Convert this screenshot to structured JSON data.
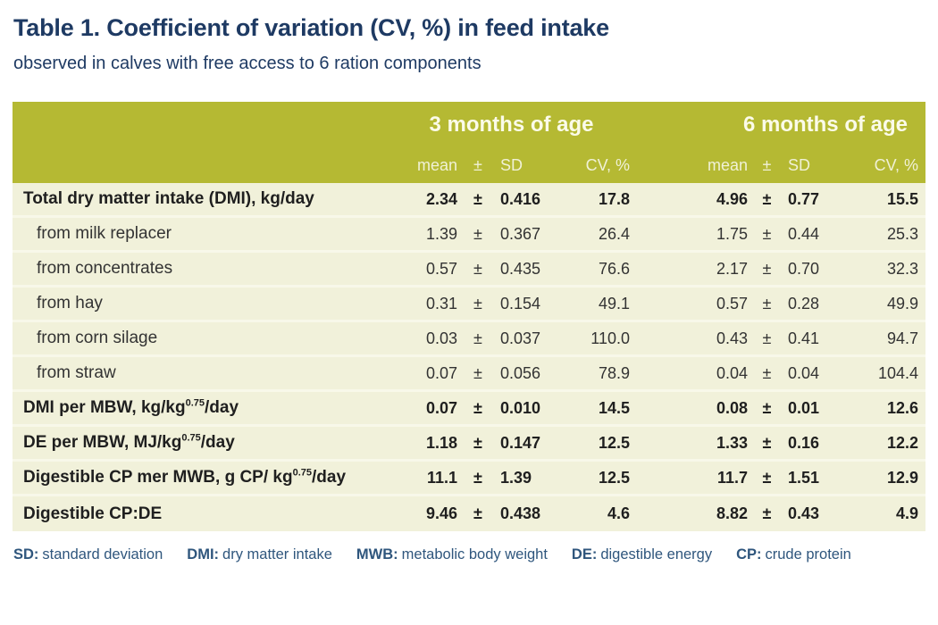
{
  "title": "Table 1. Coefficient of variation (CV, %) in feed intake",
  "subtitle": "observed in calves with free access to 6 ration components",
  "colors": {
    "title_blue": "#1e3a63",
    "header_olive": "#b5b933",
    "row_cream": "#f1f1da",
    "row_divider": "#f8f8e9",
    "footer_blue": "#2f567d"
  },
  "chart_data": {
    "type": "table",
    "title": "Table 1. Coefficient of variation (CV, %) in feed intake",
    "subtitle": "observed in calves with free access to 6 ration components",
    "group_headers": [
      "3 months of age",
      "6 months of age"
    ],
    "sub_headers": {
      "mean": "mean",
      "pm": "±",
      "sd": "SD",
      "cv": "CV, %"
    },
    "rows": [
      {
        "label": "Total dry matter intake (DMI), kg/day",
        "label_sup": "",
        "label_post": "",
        "indent": false,
        "bold": true,
        "m3": {
          "mean": "2.34",
          "sd": "0.416",
          "cv": "17.8"
        },
        "m6": {
          "mean": "4.96",
          "sd": "0.77",
          "cv": "15.5"
        }
      },
      {
        "label": "from milk replacer",
        "label_sup": "",
        "label_post": "",
        "indent": true,
        "bold": false,
        "m3": {
          "mean": "1.39",
          "sd": "0.367",
          "cv": "26.4"
        },
        "m6": {
          "mean": "1.75",
          "sd": "0.44",
          "cv": "25.3"
        }
      },
      {
        "label": "from concentrates",
        "label_sup": "",
        "label_post": "",
        "indent": true,
        "bold": false,
        "m3": {
          "mean": "0.57",
          "sd": "0.435",
          "cv": "76.6"
        },
        "m6": {
          "mean": "2.17",
          "sd": "0.70",
          "cv": "32.3"
        }
      },
      {
        "label": "from hay",
        "label_sup": "",
        "label_post": "",
        "indent": true,
        "bold": false,
        "m3": {
          "mean": "0.31",
          "sd": "0.154",
          "cv": "49.1"
        },
        "m6": {
          "mean": "0.57",
          "sd": "0.28",
          "cv": "49.9"
        }
      },
      {
        "label": "from corn silage",
        "label_sup": "",
        "label_post": "",
        "indent": true,
        "bold": false,
        "m3": {
          "mean": "0.03",
          "sd": "0.037",
          "cv": "110.0"
        },
        "m6": {
          "mean": "0.43",
          "sd": "0.41",
          "cv": "94.7"
        }
      },
      {
        "label": "from straw",
        "label_sup": "",
        "label_post": "",
        "indent": true,
        "bold": false,
        "m3": {
          "mean": "0.07",
          "sd": "0.056",
          "cv": "78.9"
        },
        "m6": {
          "mean": "0.04",
          "sd": "0.04",
          "cv": "104.4"
        }
      },
      {
        "label": "DMI per MBW, kg/kg",
        "label_sup": "0.75",
        "label_post": "/day",
        "indent": false,
        "bold": true,
        "m3": {
          "mean": "0.07",
          "sd": "0.010",
          "cv": "14.5"
        },
        "m6": {
          "mean": "0.08",
          "sd": "0.01",
          "cv": "12.6"
        }
      },
      {
        "label": "DE per MBW, MJ/kg",
        "label_sup": "0.75",
        "label_post": "/day",
        "indent": false,
        "bold": true,
        "m3": {
          "mean": "1.18",
          "sd": "0.147",
          "cv": "12.5"
        },
        "m6": {
          "mean": "1.33",
          "sd": "0.16",
          "cv": "12.2"
        }
      },
      {
        "label": "Digestible CP mer MWB, g CP/ kg",
        "label_sup": "0.75",
        "label_post": "/day",
        "indent": false,
        "bold": true,
        "m3": {
          "mean": "11.1",
          "sd": "1.39",
          "cv": "12.5"
        },
        "m6": {
          "mean": "11.7",
          "sd": "1.51",
          "cv": "12.9"
        }
      },
      {
        "label": "Digestible CP:DE",
        "label_sup": "",
        "label_post": "",
        "indent": false,
        "bold": true,
        "m3": {
          "mean": "9.46",
          "sd": "0.438",
          "cv": "4.6"
        },
        "m6": {
          "mean": "8.82",
          "sd": "0.43",
          "cv": "4.9"
        }
      }
    ]
  },
  "footer": {
    "items": [
      {
        "abbr": "SD:",
        "def": "standard deviation"
      },
      {
        "abbr": "DMI:",
        "def": "dry matter intake"
      },
      {
        "abbr": "MWB:",
        "def": "metabolic body weight"
      },
      {
        "abbr": "DE:",
        "def": "digestible energy"
      },
      {
        "abbr": "CP:",
        "def": "crude protein"
      }
    ]
  }
}
